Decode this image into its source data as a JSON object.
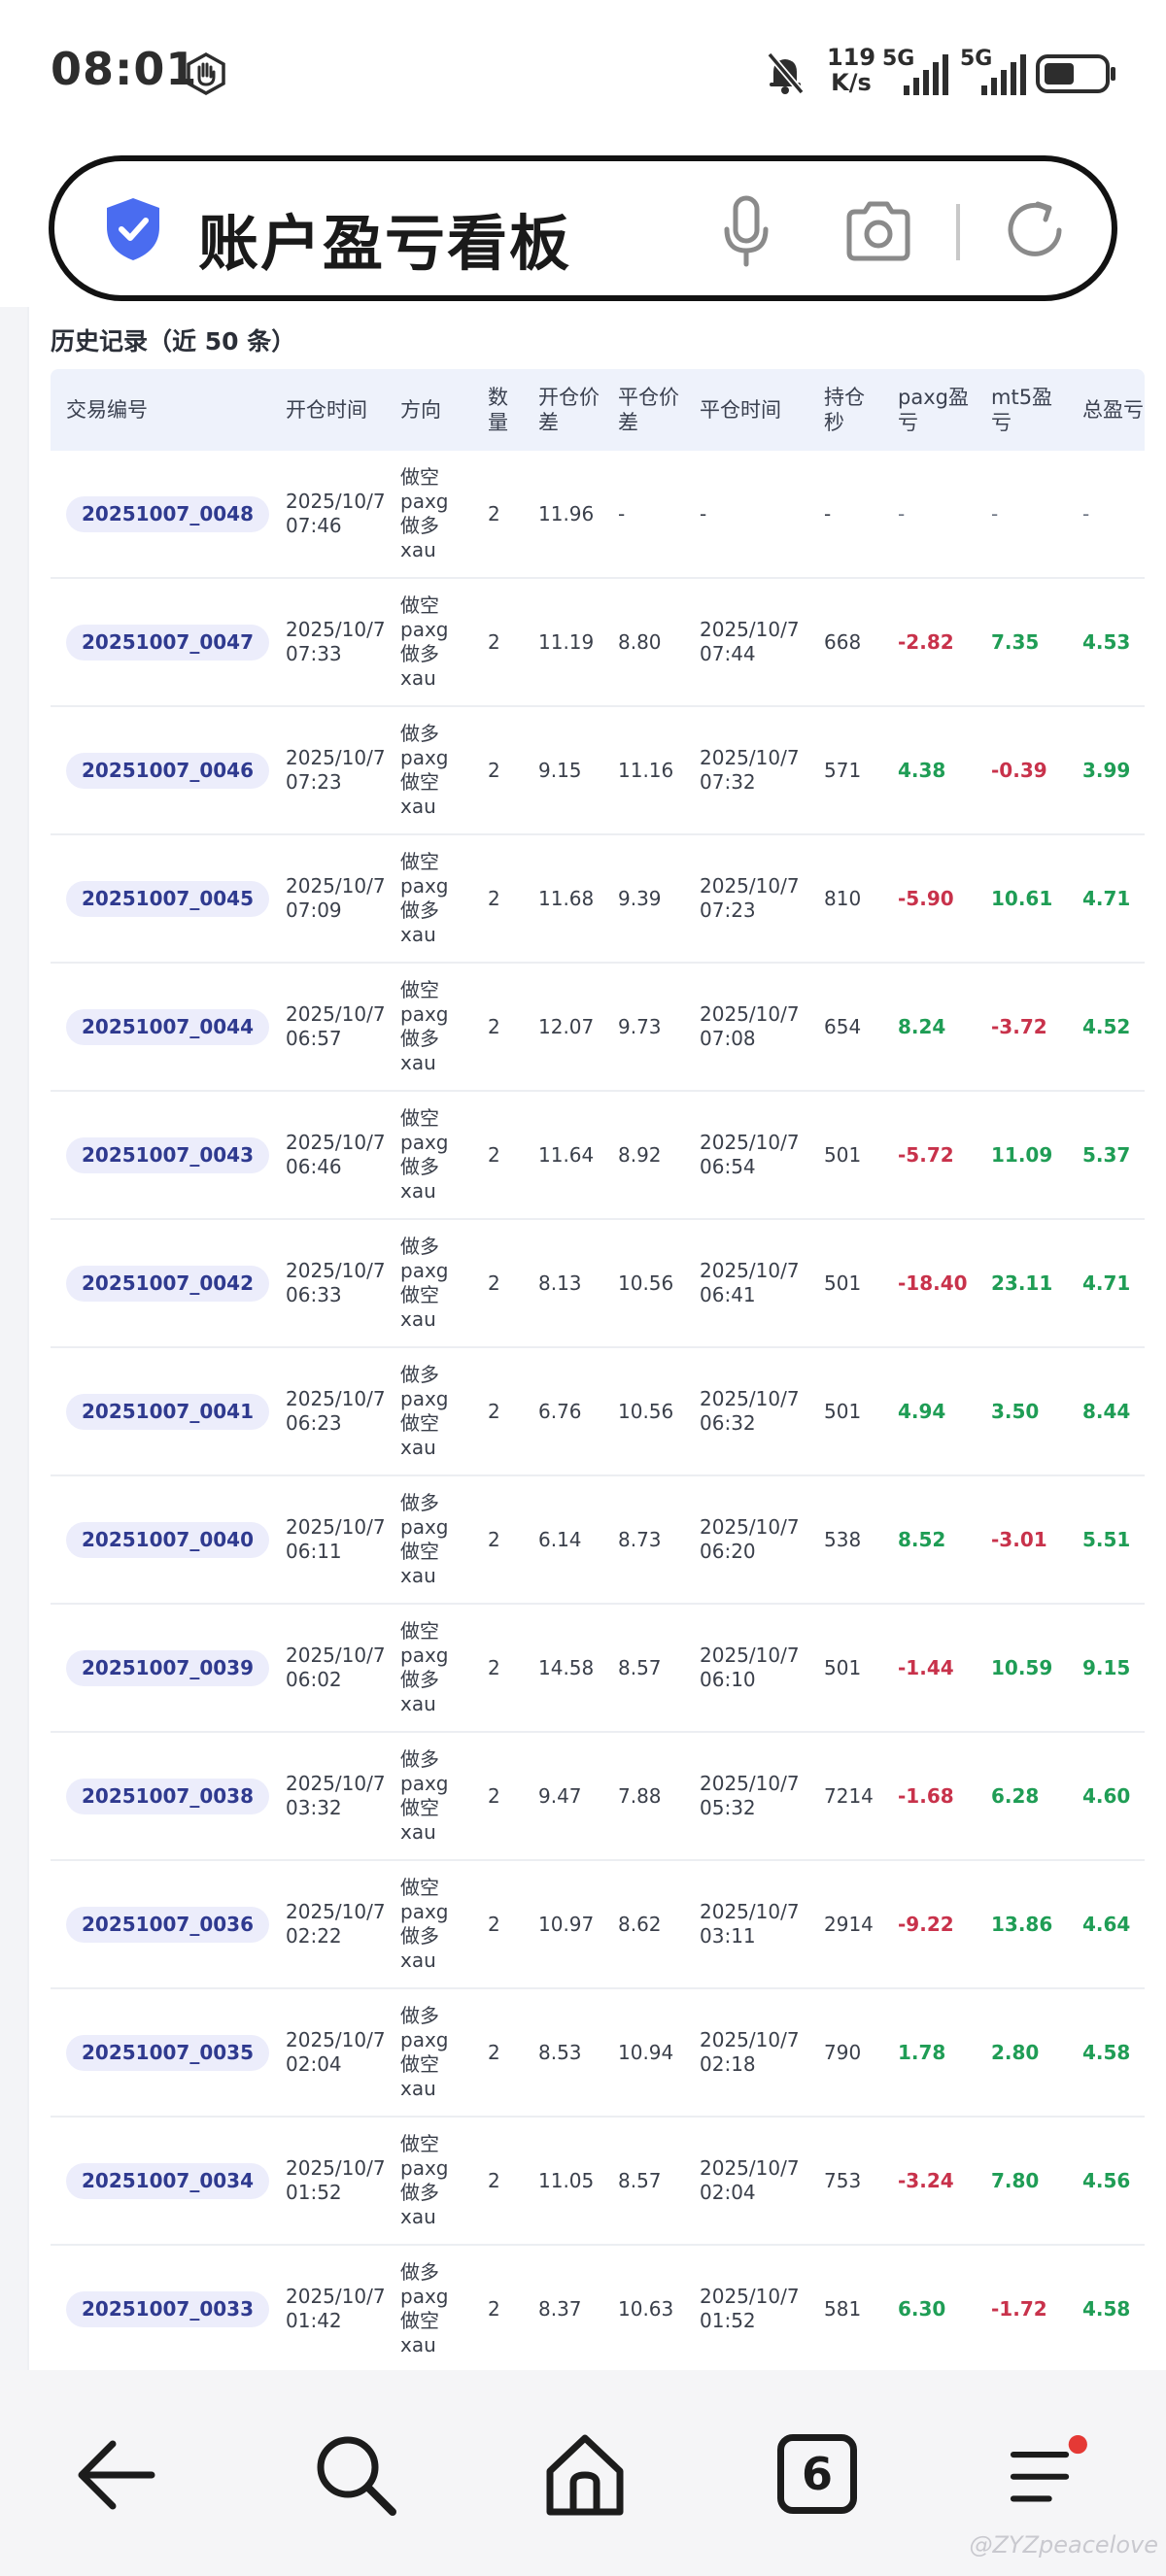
{
  "status": {
    "time": "08:01",
    "net_speed_value": "119",
    "net_speed_unit": "K/s",
    "sim1": "5G",
    "sim2": "5G"
  },
  "search": {
    "title": "账户盈亏看板"
  },
  "history": {
    "title": "历史记录（近 50 条）",
    "columns": [
      "交易编号",
      "开仓时间",
      "方向",
      "数量",
      "开仓价差",
      "平仓价差",
      "平仓时间",
      "持仓秒",
      "paxg盈亏",
      "mt5盈亏",
      "总盈亏"
    ],
    "rows": [
      {
        "id": "20251007_0048",
        "open_date": "2025/10/7",
        "open_time": "07:46",
        "dir": [
          "做空",
          "paxg",
          "做多",
          "xau"
        ],
        "qty": "2",
        "open_spread": "11.96",
        "close_spread": "-",
        "close_date": "-",
        "close_time": "",
        "hold": "-",
        "paxg": "-",
        "mt5": "-",
        "total": "-"
      },
      {
        "id": "20251007_0047",
        "open_date": "2025/10/7",
        "open_time": "07:33",
        "dir": [
          "做空",
          "paxg",
          "做多",
          "xau"
        ],
        "qty": "2",
        "open_spread": "11.19",
        "close_spread": "8.80",
        "close_date": "2025/10/7",
        "close_time": "07:44",
        "hold": "668",
        "paxg": "-2.82",
        "mt5": "7.35",
        "total": "4.53"
      },
      {
        "id": "20251007_0046",
        "open_date": "2025/10/7",
        "open_time": "07:23",
        "dir": [
          "做多",
          "paxg",
          "做空",
          "xau"
        ],
        "qty": "2",
        "open_spread": "9.15",
        "close_spread": "11.16",
        "close_date": "2025/10/7",
        "close_time": "07:32",
        "hold": "571",
        "paxg": "4.38",
        "mt5": "-0.39",
        "total": "3.99"
      },
      {
        "id": "20251007_0045",
        "open_date": "2025/10/7",
        "open_time": "07:09",
        "dir": [
          "做空",
          "paxg",
          "做多",
          "xau"
        ],
        "qty": "2",
        "open_spread": "11.68",
        "close_spread": "9.39",
        "close_date": "2025/10/7",
        "close_time": "07:23",
        "hold": "810",
        "paxg": "-5.90",
        "mt5": "10.61",
        "total": "4.71"
      },
      {
        "id": "20251007_0044",
        "open_date": "2025/10/7",
        "open_time": "06:57",
        "dir": [
          "做空",
          "paxg",
          "做多",
          "xau"
        ],
        "qty": "2",
        "open_spread": "12.07",
        "close_spread": "9.73",
        "close_date": "2025/10/7",
        "close_time": "07:08",
        "hold": "654",
        "paxg": "8.24",
        "mt5": "-3.72",
        "total": "4.52"
      },
      {
        "id": "20251007_0043",
        "open_date": "2025/10/7",
        "open_time": "06:46",
        "dir": [
          "做空",
          "paxg",
          "做多",
          "xau"
        ],
        "qty": "2",
        "open_spread": "11.64",
        "close_spread": "8.92",
        "close_date": "2025/10/7",
        "close_time": "06:54",
        "hold": "501",
        "paxg": "-5.72",
        "mt5": "11.09",
        "total": "5.37"
      },
      {
        "id": "20251007_0042",
        "open_date": "2025/10/7",
        "open_time": "06:33",
        "dir": [
          "做多",
          "paxg",
          "做空",
          "xau"
        ],
        "qty": "2",
        "open_spread": "8.13",
        "close_spread": "10.56",
        "close_date": "2025/10/7",
        "close_time": "06:41",
        "hold": "501",
        "paxg": "-18.40",
        "mt5": "23.11",
        "total": "4.71"
      },
      {
        "id": "20251007_0041",
        "open_date": "2025/10/7",
        "open_time": "06:23",
        "dir": [
          "做多",
          "paxg",
          "做空",
          "xau"
        ],
        "qty": "2",
        "open_spread": "6.76",
        "close_spread": "10.56",
        "close_date": "2025/10/7",
        "close_time": "06:32",
        "hold": "501",
        "paxg": "4.94",
        "mt5": "3.50",
        "total": "8.44"
      },
      {
        "id": "20251007_0040",
        "open_date": "2025/10/7",
        "open_time": "06:11",
        "dir": [
          "做多",
          "paxg",
          "做空",
          "xau"
        ],
        "qty": "2",
        "open_spread": "6.14",
        "close_spread": "8.73",
        "close_date": "2025/10/7",
        "close_time": "06:20",
        "hold": "538",
        "paxg": "8.52",
        "mt5": "-3.01",
        "total": "5.51"
      },
      {
        "id": "20251007_0039",
        "open_date": "2025/10/7",
        "open_time": "06:02",
        "dir": [
          "做空",
          "paxg",
          "做多",
          "xau"
        ],
        "qty": "2",
        "open_spread": "14.58",
        "close_spread": "8.57",
        "close_date": "2025/10/7",
        "close_time": "06:10",
        "hold": "501",
        "paxg": "-1.44",
        "mt5": "10.59",
        "total": "9.15"
      },
      {
        "id": "20251007_0038",
        "open_date": "2025/10/7",
        "open_time": "03:32",
        "dir": [
          "做多",
          "paxg",
          "做空",
          "xau"
        ],
        "qty": "2",
        "open_spread": "9.47",
        "close_spread": "7.88",
        "close_date": "2025/10/7",
        "close_time": "05:32",
        "hold": "7214",
        "paxg": "-1.68",
        "mt5": "6.28",
        "total": "4.60"
      },
      {
        "id": "20251007_0036",
        "open_date": "2025/10/7",
        "open_time": "02:22",
        "dir": [
          "做空",
          "paxg",
          "做多",
          "xau"
        ],
        "qty": "2",
        "open_spread": "10.97",
        "close_spread": "8.62",
        "close_date": "2025/10/7",
        "close_time": "03:11",
        "hold": "2914",
        "paxg": "-9.22",
        "mt5": "13.86",
        "total": "4.64"
      },
      {
        "id": "20251007_0035",
        "open_date": "2025/10/7",
        "open_time": "02:04",
        "dir": [
          "做多",
          "paxg",
          "做空",
          "xau"
        ],
        "qty": "2",
        "open_spread": "8.53",
        "close_spread": "10.94",
        "close_date": "2025/10/7",
        "close_time": "02:18",
        "hold": "790",
        "paxg": "1.78",
        "mt5": "2.80",
        "total": "4.58"
      },
      {
        "id": "20251007_0034",
        "open_date": "2025/10/7",
        "open_time": "01:52",
        "dir": [
          "做空",
          "paxg",
          "做多",
          "xau"
        ],
        "qty": "2",
        "open_spread": "11.05",
        "close_spread": "8.57",
        "close_date": "2025/10/7",
        "close_time": "02:04",
        "hold": "753",
        "paxg": "-3.24",
        "mt5": "7.80",
        "total": "4.56"
      },
      {
        "id": "20251007_0033",
        "open_date": "2025/10/7",
        "open_time": "01:42",
        "dir": [
          "做多",
          "paxg",
          "做空",
          "xau"
        ],
        "qty": "2",
        "open_spread": "8.37",
        "close_spread": "10.63",
        "close_date": "2025/10/7",
        "close_time": "01:52",
        "hold": "581",
        "paxg": "6.30",
        "mt5": "-1.72",
        "total": "4.58"
      }
    ]
  },
  "nav": {
    "tab_count": "6",
    "icons": [
      "back-icon",
      "search-icon",
      "home-icon",
      "tabs-icon",
      "menu-icon"
    ]
  },
  "watermark": "@ZYZpeacelove",
  "colors": {
    "positive": "#1f9d55",
    "negative": "#c8324b",
    "id_pill_bg": "#ecedfb",
    "header_bg": "#eef2fb",
    "shield": "#4a6cf0",
    "badge": "#e53935"
  }
}
